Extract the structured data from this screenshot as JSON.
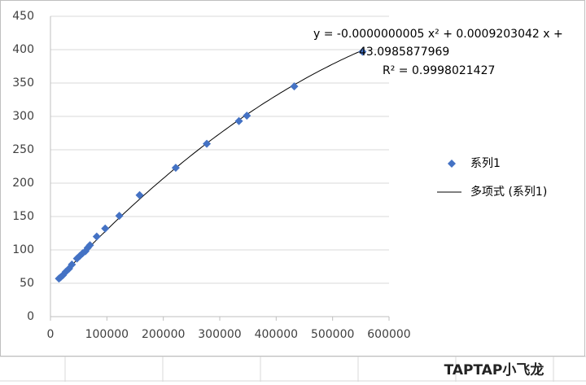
{
  "chart_data": {
    "type": "scatter",
    "series": [
      {
        "name": "系列1",
        "color": "#4472c4",
        "x": [
          15000,
          18000,
          22000,
          27000,
          33000,
          38000,
          47000,
          52000,
          57000,
          62000,
          66000,
          70000,
          82000,
          97000,
          122000,
          158000,
          222000,
          277000,
          334000,
          348000,
          432000,
          553000
        ],
        "values": [
          57,
          59,
          62,
          67,
          72,
          78,
          87,
          91,
          95,
          98,
          103,
          107,
          120,
          132,
          151,
          182,
          223,
          259,
          293,
          301,
          345,
          397
        ]
      }
    ],
    "trendline": {
      "name": "多项式 (系列1)",
      "color": "#000000",
      "coefficients": [
        -5e-10,
        0.0009203042,
        43.0985877969
      ],
      "equation_lines": [
        "y = -0.0000000005 x² + 0.0009203042 x +",
        "43.0985877969"
      ],
      "r2_label": "R² = 0.9998021427"
    },
    "xlim": [
      0,
      600000
    ],
    "xticks": [
      0,
      100000,
      200000,
      300000,
      400000,
      500000,
      600000
    ],
    "ylim": [
      0,
      450
    ],
    "yticks": [
      0,
      50,
      100,
      150,
      200,
      250,
      300,
      350,
      400,
      450
    ],
    "grid": true,
    "legend": "right"
  },
  "watermark": "TAPTAP小飞龙"
}
